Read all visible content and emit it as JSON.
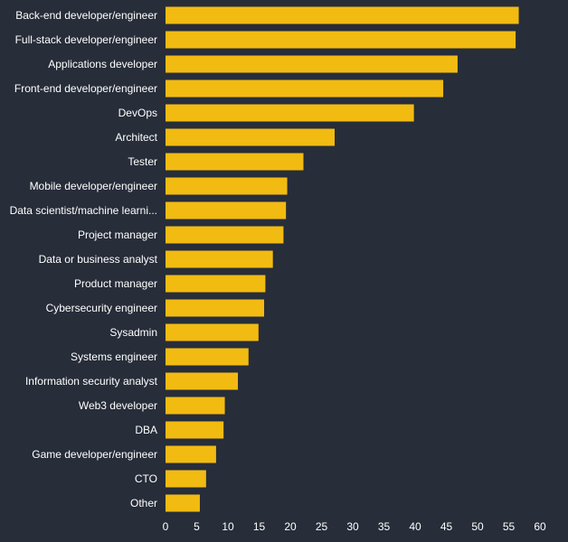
{
  "chart_data": {
    "type": "bar",
    "orientation": "horizontal",
    "title": "",
    "xlabel": "",
    "ylabel": "",
    "xlim": [
      0,
      60
    ],
    "x_ticks": [
      0,
      5,
      10,
      15,
      20,
      25,
      30,
      35,
      40,
      45,
      50,
      55,
      60
    ],
    "grid": false,
    "categories": [
      "Back-end developer/engineer",
      "Full-stack developer/engineer",
      "Applications developer",
      "Front-end developer/engineer",
      "DevOps",
      "Architect",
      "Tester",
      "Mobile developer/engineer",
      "Data scientist/machine learni...",
      "Project manager",
      "Data or business analyst",
      "Product manager",
      "Cybersecurity engineer",
      "Sysadmin",
      "Systems engineer",
      "Information security analyst",
      "Web3 developer",
      "DBA",
      "Game developer/engineer",
      "CTO",
      "Other"
    ],
    "values": [
      56.6,
      56.1,
      46.8,
      44.5,
      39.8,
      27.1,
      22.1,
      19.5,
      19.3,
      18.9,
      17.2,
      16.0,
      15.8,
      14.9,
      13.3,
      11.6,
      9.5,
      9.3,
      8.1,
      6.5,
      5.5
    ]
  },
  "colors": {
    "background": "#272d39",
    "bar": "#f2bb12",
    "text": "#ffffff"
  }
}
